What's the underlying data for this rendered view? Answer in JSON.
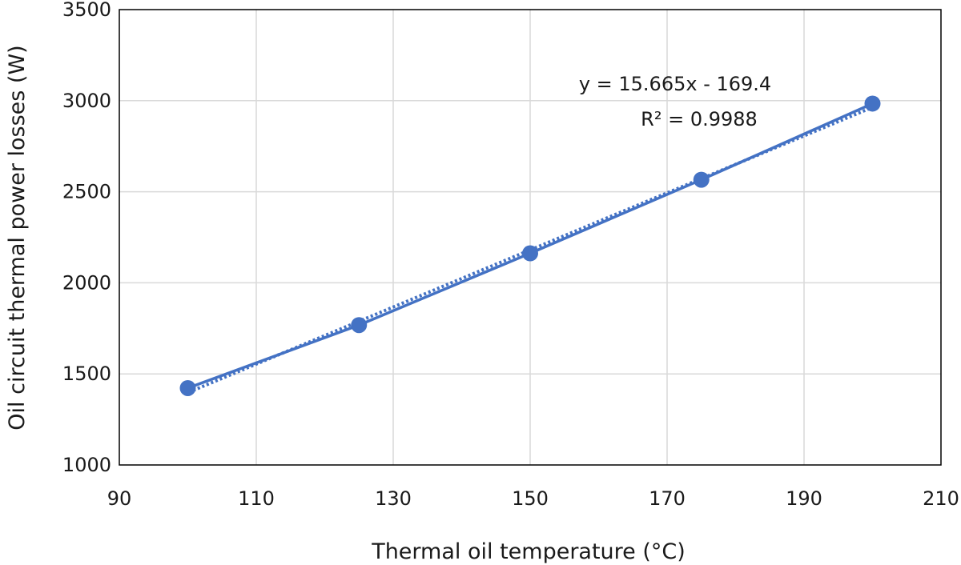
{
  "chart_data": {
    "type": "scatter",
    "title": "",
    "xlabel": "Thermal oil temperature (°C)",
    "ylabel": "Oil circuit thermal power losses (W)",
    "xlim": [
      90,
      210
    ],
    "ylim": [
      1000,
      3500
    ],
    "xticks": [
      "90",
      "110",
      "130",
      "150",
      "170",
      "190",
      "210"
    ],
    "yticks": [
      "1000",
      "1500",
      "2000",
      "2500",
      "3000",
      "3500"
    ],
    "grid": true,
    "series": [
      {
        "x": [
          100,
          125,
          150,
          175,
          200
        ],
        "y": [
          1422,
          1768,
          2162,
          2566,
          2984
        ],
        "color": "#4472C4",
        "marker": "circle",
        "line": "solid"
      }
    ],
    "trendline": {
      "type": "linear",
      "slope": 15.665,
      "intercept": -169.4,
      "style": "dotted",
      "color": "#4472C4"
    },
    "annotations": {
      "equation": "y = 15.665x - 169.4",
      "r_squared": "R² = 0.9988"
    }
  }
}
